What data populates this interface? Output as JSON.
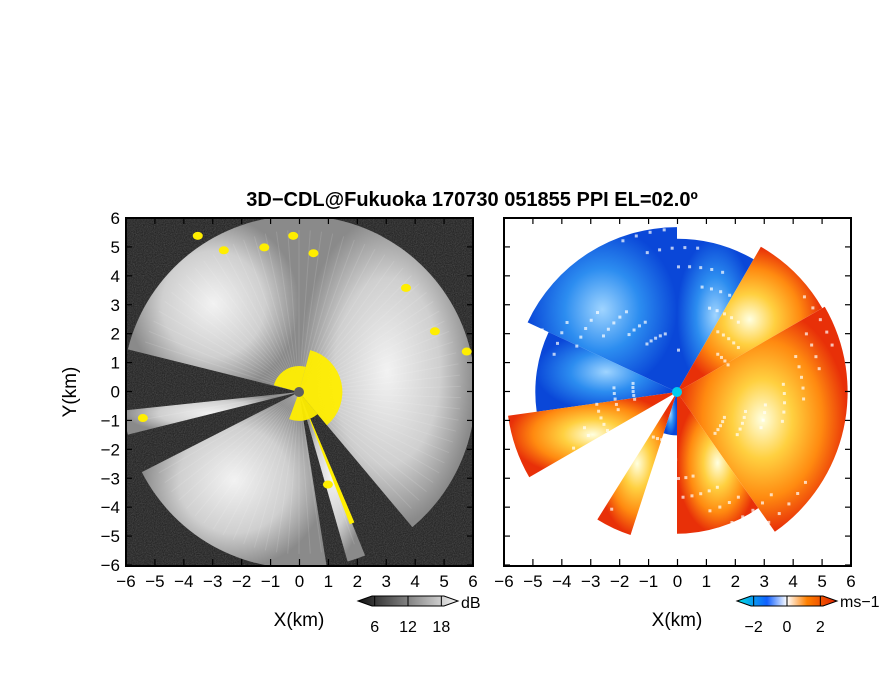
{
  "title": "3D−CDL@Fukuoka 170730 051855 PPI EL=02.0º",
  "chart_data": [
    {
      "type": "heatmap",
      "panel": "left",
      "xlabel": "X(km)",
      "ylabel": "Y(km)",
      "xlim": [
        -6,
        6
      ],
      "ylim": [
        -6,
        6
      ],
      "xticks": [
        "−6",
        "−5",
        "−4",
        "−3",
        "−2",
        "−1",
        "0",
        "1",
        "2",
        "3",
        "4",
        "5",
        "6"
      ],
      "yticks": [
        "6",
        "5",
        "4",
        "3",
        "2",
        "1",
        "0",
        "−1",
        "−2",
        "−3",
        "−4",
        "−5",
        "−6"
      ],
      "colormap": "grayscale",
      "colorbar": {
        "ticks": [
          "6",
          "12",
          "18"
        ],
        "unit": "dB",
        "range": [
          3,
          21
        ]
      },
      "highlight_color": "#ffee00",
      "blocked_sectors_deg": [
        [
          140,
          158
        ],
        [
          164,
          171
        ],
        [
          243,
          256
        ],
        [
          264,
          284
        ]
      ],
      "max_range_km": 6
    },
    {
      "type": "heatmap",
      "panel": "right",
      "xlabel": "X(km)",
      "xlim": [
        -6,
        6
      ],
      "ylim": [
        -6,
        6
      ],
      "xticks": [
        "−6",
        "−5",
        "−4",
        "−3",
        "−2",
        "−1",
        "0",
        "1",
        "2",
        "3",
        "4",
        "5",
        "6"
      ],
      "yticks": [
        "6",
        "5",
        "4",
        "3",
        "2",
        "1",
        "0",
        "−1",
        "−2",
        "−3",
        "−4",
        "−5",
        "−6"
      ],
      "colormap": "diverging blue-white-orange",
      "colorbar": {
        "ticks": [
          "−2",
          "0",
          "2"
        ],
        "unit": "ms−1",
        "range": [
          -3,
          3
        ]
      },
      "center_marker_color": "#00ccee"
    }
  ]
}
